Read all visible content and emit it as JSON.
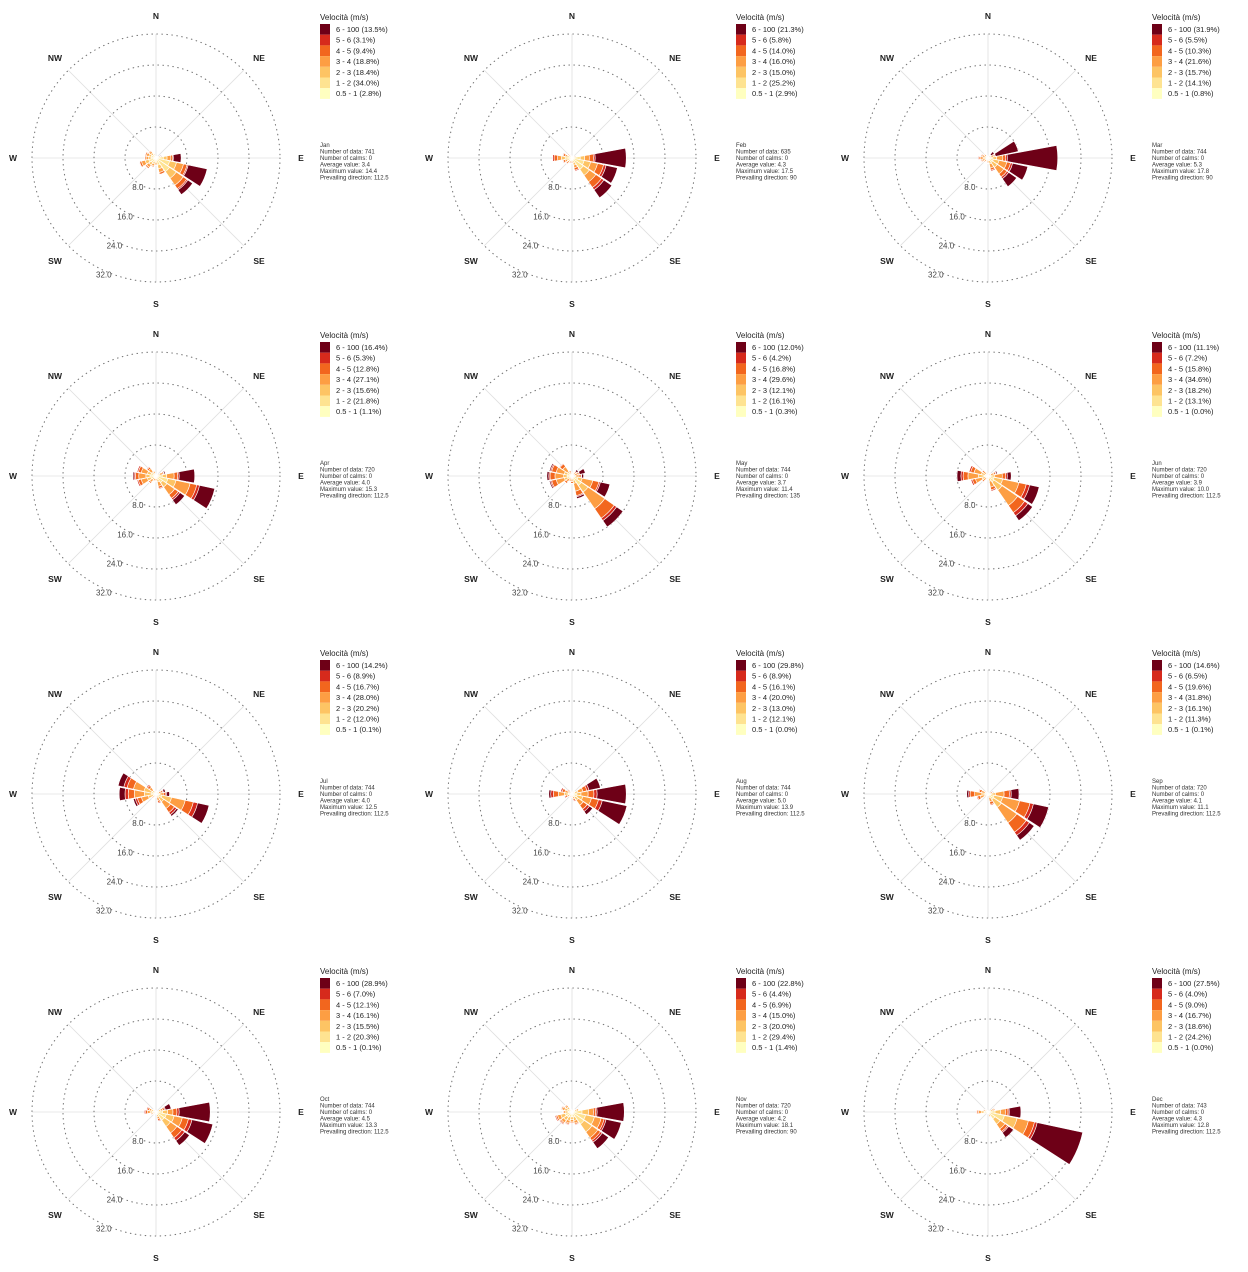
{
  "chart_data": {
    "type": "wind-rose",
    "directions": [
      "N",
      "NNE",
      "NE",
      "ENE",
      "E",
      "ESE",
      "SE",
      "SSE",
      "S",
      "SSW",
      "SW",
      "WSW",
      "W",
      "WNW",
      "NW",
      "NNW"
    ],
    "compass_labels": [
      "N",
      "NE",
      "E",
      "SE",
      "S",
      "SW",
      "W",
      "NW"
    ],
    "rlim": [
      0,
      32
    ],
    "radial_ticks": [
      "8.0",
      "16.0",
      "24.0",
      "32.0"
    ],
    "grid": true,
    "legend_title": "Velocità (m/s)",
    "speed_bins": [
      "0.5 - 1",
      "1 - 2",
      "2 - 3",
      "3 - 4",
      "4 - 5",
      "5 - 6",
      "6 - 100"
    ],
    "colors": [
      "#ffffc0",
      "#fee391",
      "#fdc464",
      "#fd9e43",
      "#f2661e",
      "#d62a1c",
      "#6e0017"
    ],
    "stat_labels": [
      "Number of data: ",
      "Number of calms: ",
      "Average value: ",
      "Maximum value: ",
      "Prevailing direction: "
    ],
    "charts": [
      {
        "month": "Jan",
        "legend_pct": [
          "2.8%",
          "34.0%",
          "18.4%",
          "18.8%",
          "9.4%",
          "3.1%",
          "13.5%"
        ],
        "stats": [
          "741",
          "0",
          "3.4",
          "14.4",
          "112.5"
        ],
        "dir_pct": [
          0.4,
          0.4,
          0.6,
          1.5,
          6.5,
          13.5,
          11.5,
          4.5,
          2.0,
          2.5,
          3.5,
          4.5,
          3.0,
          3.0,
          2.5,
          1.2
        ],
        "dir_hi": [
          0.0,
          0.0,
          0.0,
          0.2,
          2.0,
          5.0,
          1.5,
          0.0,
          0.0,
          0.0,
          0.0,
          0.0,
          0.0,
          0.0,
          0.0,
          0.0
        ]
      },
      {
        "month": "Feb",
        "legend_pct": [
          "2.9%",
          "25.2%",
          "15.0%",
          "16.0%",
          "14.0%",
          "5.8%",
          "21.3%"
        ],
        "stats": [
          "635",
          "0",
          "4.3",
          "17.5",
          "90"
        ],
        "dir_pct": [
          0.5,
          0.5,
          0.8,
          1.2,
          14.0,
          12.0,
          12.5,
          3.5,
          1.5,
          1.5,
          2.0,
          2.5,
          5.0,
          2.5,
          1.5,
          1.0
        ],
        "dir_hi": [
          0.0,
          0.0,
          0.0,
          0.0,
          8.0,
          3.0,
          2.5,
          0.0,
          0.0,
          0.0,
          0.0,
          0.0,
          0.0,
          0.0,
          0.0,
          0.0
        ]
      },
      {
        "month": "Mar",
        "legend_pct": [
          "0.8%",
          "14.1%",
          "15.7%",
          "21.6%",
          "10.3%",
          "5.5%",
          "31.9%"
        ],
        "stats": [
          "744",
          "0",
          "5.3",
          "17.8",
          "90"
        ],
        "dir_pct": [
          0.5,
          0.5,
          2.0,
          8.0,
          18.0,
          10.5,
          9.0,
          3.5,
          1.5,
          1.0,
          1.5,
          2.0,
          2.5,
          2.0,
          1.5,
          0.8
        ],
        "dir_hi": [
          0.0,
          0.0,
          1.0,
          6.0,
          13.0,
          4.0,
          2.5,
          0.0,
          0.0,
          0.0,
          0.0,
          0.0,
          0.0,
          0.0,
          0.0,
          0.0
        ]
      },
      {
        "month": "Apr",
        "legend_pct": [
          "1.1%",
          "21.8%",
          "15.6%",
          "27.1%",
          "12.8%",
          "5.3%",
          "16.4%"
        ],
        "stats": [
          "720",
          "0",
          "4.0",
          "15.3",
          "112.5"
        ],
        "dir_pct": [
          0.5,
          0.5,
          0.8,
          2.5,
          10.0,
          15.5,
          9.0,
          3.5,
          1.5,
          1.5,
          2.5,
          5.0,
          6.0,
          5.0,
          3.0,
          1.5
        ],
        "dir_hi": [
          0.0,
          0.0,
          0.0,
          0.3,
          4.0,
          4.0,
          1.5,
          0.0,
          0.0,
          0.0,
          0.0,
          0.0,
          0.3,
          0.0,
          0.0,
          0.0
        ]
      },
      {
        "month": "May",
        "legend_pct": [
          "0.3%",
          "16.1%",
          "12.1%",
          "29.6%",
          "16.8%",
          "4.2%",
          "12.0%"
        ],
        "stats": [
          "744",
          "0",
          "3.7",
          "11.4",
          "135"
        ],
        "dir_pct": [
          1.0,
          0.8,
          2.0,
          3.5,
          3.0,
          10.0,
          16.0,
          6.0,
          2.0,
          1.5,
          2.5,
          6.0,
          6.5,
          6.0,
          4.0,
          1.5
        ],
        "dir_hi": [
          0.0,
          0.0,
          0.5,
          1.5,
          0.5,
          2.5,
          2.0,
          0.5,
          0.0,
          0.0,
          0.0,
          0.3,
          0.5,
          0.3,
          0.0,
          0.0
        ]
      },
      {
        "month": "Jun",
        "legend_pct": [
          "0.0%",
          "13.1%",
          "18.2%",
          "34.6%",
          "15.8%",
          "7.2%",
          "11.1%"
        ],
        "stats": [
          "720",
          "0",
          "3.9",
          "10.0",
          "112.5"
        ],
        "dir_pct": [
          0.5,
          0.8,
          1.0,
          2.5,
          6.0,
          13.5,
          14.0,
          4.0,
          1.0,
          1.0,
          2.0,
          4.5,
          8.0,
          5.0,
          2.0,
          1.0
        ],
        "dir_hi": [
          0.0,
          0.0,
          0.0,
          0.3,
          1.0,
          2.5,
          1.5,
          0.0,
          0.0,
          0.0,
          0.0,
          0.0,
          1.0,
          0.0,
          0.0,
          0.0
        ]
      },
      {
        "month": "Jul",
        "legend_pct": [
          "0.1%",
          "12.0%",
          "20.2%",
          "28.0%",
          "16.7%",
          "8.9%",
          "14.2%"
        ],
        "stats": [
          "744",
          "0",
          "4.0",
          "12.5",
          "112.5"
        ],
        "dir_pct": [
          0.8,
          0.8,
          1.0,
          2.5,
          3.5,
          14.0,
          7.0,
          2.5,
          1.0,
          1.0,
          1.5,
          6.0,
          9.5,
          10.0,
          3.0,
          1.0
        ],
        "dir_hi": [
          0.0,
          0.0,
          0.0,
          0.5,
          0.8,
          3.0,
          0.5,
          0.0,
          0.0,
          0.0,
          0.0,
          0.5,
          1.5,
          1.5,
          0.0,
          0.0
        ]
      },
      {
        "month": "Aug",
        "legend_pct": [
          "0.0%",
          "12.1%",
          "13.0%",
          "20.0%",
          "16.1%",
          "8.9%",
          "29.8%"
        ],
        "stats": [
          "744",
          "0",
          "5.0",
          "13.9",
          "112.5"
        ],
        "dir_pct": [
          0.5,
          0.8,
          1.0,
          7.5,
          14.0,
          14.5,
          6.5,
          2.0,
          1.0,
          1.0,
          1.0,
          2.0,
          6.0,
          3.0,
          1.5,
          0.8
        ],
        "dir_hi": [
          0.0,
          0.0,
          0.0,
          3.0,
          7.5,
          6.5,
          1.0,
          0.0,
          0.0,
          0.0,
          0.0,
          0.0,
          0.5,
          0.0,
          0.0,
          0.0
        ]
      },
      {
        "month": "Sep",
        "legend_pct": [
          "0.1%",
          "11.3%",
          "16.1%",
          "31.8%",
          "19.6%",
          "6.5%",
          "14.6%"
        ],
        "stats": [
          "720",
          "0",
          "4.1",
          "11.1",
          "112.5"
        ],
        "dir_pct": [
          0.3,
          0.3,
          0.5,
          1.5,
          8.0,
          16.0,
          14.5,
          3.0,
          0.5,
          0.5,
          1.0,
          3.0,
          5.5,
          2.5,
          1.0,
          0.5
        ],
        "dir_hi": [
          0.0,
          0.0,
          0.0,
          0.2,
          2.0,
          4.0,
          1.5,
          0.0,
          0.0,
          0.0,
          0.0,
          0.0,
          0.5,
          0.0,
          0.0,
          0.0
        ]
      },
      {
        "month": "Oct",
        "legend_pct": [
          "0.1%",
          "20.3%",
          "15.5%",
          "16.1%",
          "12.1%",
          "7.0%",
          "28.9%"
        ],
        "stats": [
          "744",
          "0",
          "4.5",
          "13.3",
          "112.5"
        ],
        "dir_pct": [
          0.3,
          0.3,
          0.5,
          4.0,
          14.0,
          15.0,
          10.5,
          2.5,
          0.5,
          0.5,
          1.0,
          1.5,
          3.0,
          2.5,
          1.0,
          0.5
        ],
        "dir_hi": [
          0.0,
          0.0,
          0.0,
          1.5,
          8.0,
          5.5,
          1.5,
          0.0,
          0.0,
          0.0,
          0.0,
          0.0,
          0.0,
          0.0,
          0.0,
          0.0
        ]
      },
      {
        "month": "Nov",
        "legend_pct": [
          "1.4%",
          "29.4%",
          "20.0%",
          "15.0%",
          "6.9%",
          "4.4%",
          "22.8%"
        ],
        "stats": [
          "720",
          "0",
          "4.2",
          "18.1",
          "90"
        ],
        "dir_pct": [
          0.5,
          0.3,
          1.0,
          2.0,
          13.5,
          13.0,
          11.5,
          3.5,
          3.0,
          3.5,
          4.0,
          4.5,
          2.5,
          3.0,
          2.5,
          0.8
        ],
        "dir_hi": [
          0.0,
          0.0,
          0.0,
          0.0,
          7.0,
          4.0,
          2.0,
          0.0,
          0.0,
          0.0,
          0.0,
          0.0,
          0.0,
          0.0,
          0.0,
          0.0
        ]
      },
      {
        "month": "Dec",
        "legend_pct": [
          "0.0%",
          "24.2%",
          "18.6%",
          "16.7%",
          "9.0%",
          "4.0%",
          "27.5%"
        ],
        "stats": [
          "743",
          "0",
          "4.3",
          "12.8",
          "112.5"
        ],
        "dir_pct": [
          0.3,
          0.3,
          0.5,
          2.0,
          8.5,
          25.0,
          8.0,
          1.5,
          0.5,
          0.3,
          0.5,
          1.0,
          3.0,
          1.5,
          1.0,
          0.5
        ],
        "dir_hi": [
          0.0,
          0.0,
          0.0,
          0.0,
          3.0,
          12.0,
          1.5,
          0.0,
          0.0,
          0.0,
          0.0,
          0.0,
          0.0,
          0.0,
          0.0,
          0.0
        ]
      }
    ]
  }
}
